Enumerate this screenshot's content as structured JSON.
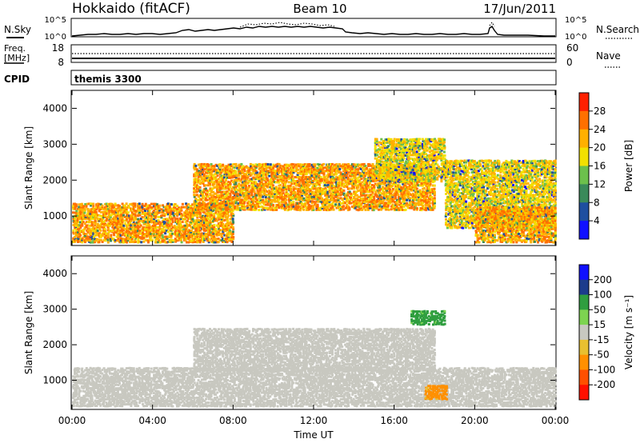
{
  "header": {
    "title": "Hokkaido (fitACF)",
    "beam": "Beam 10",
    "date": "17/Jun/2011"
  },
  "status_panel": {
    "nsky_label": "N.Sky",
    "nsky_ticks": [
      "10^5",
      "10^0"
    ],
    "nsearch_label": "N.Search",
    "nsearch_ticks": [
      "10^5",
      "10^0"
    ],
    "freq_label_1": "Freq.",
    "freq_label_2": "[MHz]",
    "freq_ticks": [
      "18",
      "8"
    ],
    "nave_label": "Nave",
    "nave_ticks": [
      "60",
      "0"
    ],
    "cpid_label": "CPID",
    "cpid_value": "themis 3300"
  },
  "chart_data": [
    {
      "type": "heatmap",
      "title": "",
      "xlabel": "",
      "ylabel": "Slant Range [km]",
      "x_ticks": [
        "00:00",
        "04:00",
        "08:00",
        "12:00",
        "16:00",
        "20:00",
        "00:00"
      ],
      "y_ticks": [
        "1000",
        "2000",
        "3000",
        "4000"
      ],
      "ylim": [
        180,
        4500
      ],
      "colorbar": {
        "label": "Power [dB]",
        "ticks": [
          "28",
          "24",
          "20",
          "16",
          "12",
          "8",
          "4"
        ],
        "levels": [
          0,
          4,
          8,
          12,
          16,
          20,
          24,
          28,
          32
        ],
        "colors": [
          "#1010ff",
          "#1e4fa0",
          "#3a8a5a",
          "#6cc04c",
          "#f2e000",
          "#ffb000",
          "#ff7000",
          "#ff2000"
        ]
      },
      "features": [
        {
          "name": "low-range band",
          "x_hours": [
            0,
            8
          ],
          "range_km": [
            300,
            1400
          ],
          "dominant_db": 28
        },
        {
          "name": "dayside arc",
          "x_hours": [
            6,
            18
          ],
          "range_km": [
            1200,
            2500
          ],
          "dominant_db": 28
        },
        {
          "name": "afternoon arc",
          "x_hours": [
            15,
            18.5
          ],
          "range_km": [
            2000,
            3200
          ],
          "dominant_db": 24
        },
        {
          "name": "evening descent",
          "x_hours": [
            18.5,
            24
          ],
          "range_km": [
            700,
            2600
          ],
          "dominant_db": 24
        },
        {
          "name": "evening low band",
          "x_hours": [
            20,
            24
          ],
          "range_km": [
            300,
            1300
          ],
          "dominant_db": 28
        }
      ]
    },
    {
      "type": "heatmap",
      "title": "",
      "xlabel": "Time UT",
      "ylabel": "Slant Range [km]",
      "x_ticks": [
        "00:00",
        "04:00",
        "08:00",
        "12:00",
        "16:00",
        "20:00",
        "00:00"
      ],
      "y_ticks": [
        "1000",
        "2000",
        "3000",
        "4000"
      ],
      "ylim": [
        180,
        4500
      ],
      "colorbar": {
        "label": "Velocity [m s⁻¹]",
        "ticks": [
          "200",
          "100",
          "50",
          "15",
          "-15",
          "-50",
          "-100",
          "-200"
        ],
        "levels": [
          -250,
          -200,
          -100,
          -50,
          -15,
          15,
          50,
          100,
          200,
          250
        ],
        "colors": [
          "#ff1000",
          "#ff5000",
          "#ff9000",
          "#e8c030",
          "#c8c8c0",
          "#7dd450",
          "#2f9e3f",
          "#1c3c8c",
          "#1010ff"
        ]
      },
      "features": [
        {
          "name": "ground scatter band",
          "x_hours": [
            0,
            24
          ],
          "range_km": [
            300,
            1400
          ],
          "velocity_ms": 0
        },
        {
          "name": "dayside ground scatter",
          "x_hours": [
            6,
            18
          ],
          "range_km": [
            1300,
            2500
          ],
          "velocity_ms": 0
        },
        {
          "name": "positive velocity patch",
          "x_hours": [
            16.8,
            18.5
          ],
          "range_km": [
            2600,
            3000
          ],
          "velocity_ms": 60
        },
        {
          "name": "negative velocity patch",
          "x_hours": [
            17.5,
            18.6
          ],
          "range_km": [
            500,
            900
          ],
          "velocity_ms": -60
        }
      ]
    }
  ]
}
